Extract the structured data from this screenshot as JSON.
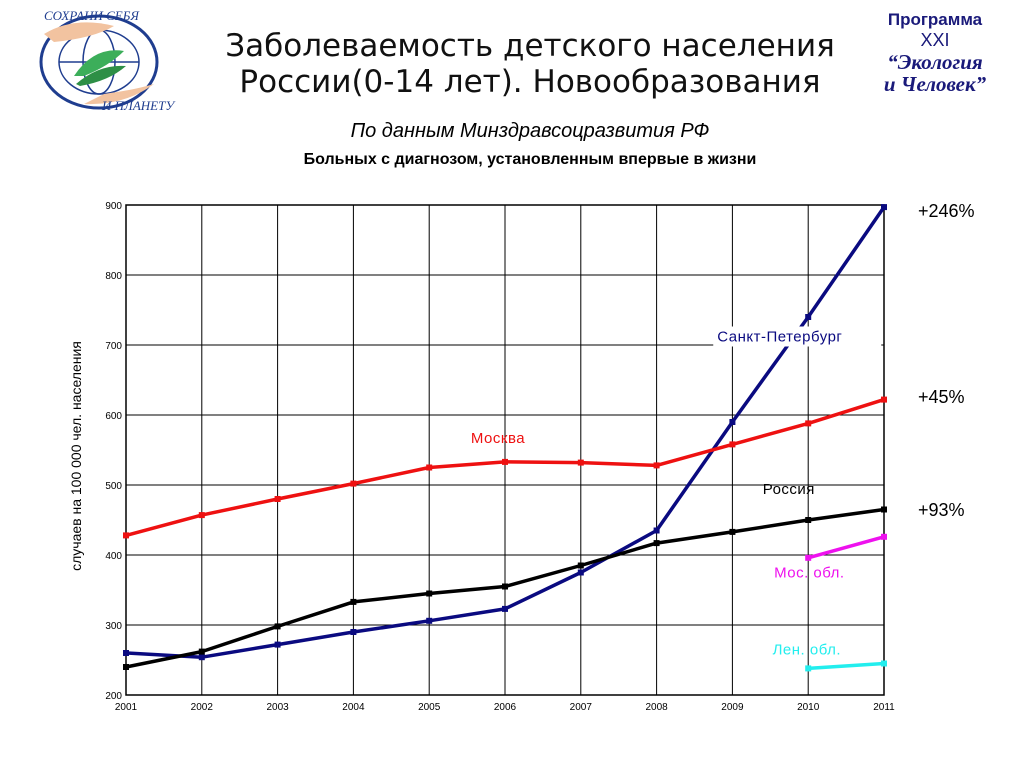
{
  "header": {
    "title_line1": "Заболеваемость детского населения",
    "title_line2": "России(0-14 лет). Новообразования",
    "subtitle": "По данным Минздравсоцразвития РФ",
    "subtitle2": "Больных с диагнозом, установленным впервые в жизни"
  },
  "logo_left": {
    "text_top": "СОХРАНИ СЕБЯ",
    "text_bottom": "И ПЛАНЕТУ"
  },
  "logo_right": {
    "line1": "Программа",
    "line2": "XXI",
    "line3": "“Экология",
    "line4": "и Человек”"
  },
  "percentages": {
    "spb": "+246%",
    "moscow": "+45%",
    "russia": "+93%"
  },
  "chart_data": {
    "type": "line",
    "ylabel": "случаев на 100 000 чел. населения",
    "xlabel": "",
    "x": [
      "2001",
      "2002",
      "2003",
      "2004",
      "2005",
      "2006",
      "2007",
      "2008",
      "2009",
      "2010",
      "2011"
    ],
    "yticks": [
      "200",
      "300",
      "400",
      "500",
      "600",
      "700",
      "800",
      "900"
    ],
    "ylim": [
      200,
      900
    ],
    "grid": true,
    "series": [
      {
        "name": "Санкт-Петербург",
        "color": "#0a0a80",
        "x": [
          "2001",
          "2002",
          "2003",
          "2004",
          "2005",
          "2006",
          "2007",
          "2008",
          "2009",
          "2010",
          "2011"
        ],
        "values": [
          260,
          254,
          272,
          290,
          306,
          323,
          375,
          435,
          590,
          740,
          897
        ]
      },
      {
        "name": "Москва",
        "color": "#ee1111",
        "x": [
          "2001",
          "2002",
          "2003",
          "2004",
          "2005",
          "2006",
          "2007",
          "2008",
          "2009",
          "2010",
          "2011"
        ],
        "values": [
          428,
          457,
          480,
          502,
          525,
          533,
          532,
          528,
          558,
          588,
          622
        ]
      },
      {
        "name": "Россия",
        "color": "#000000",
        "x": [
          "2001",
          "2002",
          "2003",
          "2004",
          "2005",
          "2006",
          "2007",
          "2008",
          "2009",
          "2010",
          "2011"
        ],
        "values": [
          240,
          262,
          298,
          333,
          345,
          355,
          385,
          417,
          433,
          450,
          465
        ]
      },
      {
        "name": "Мос. обл.",
        "color": "#ee11ee",
        "x": [
          "2010",
          "2011"
        ],
        "values": [
          396,
          426
        ]
      },
      {
        "name": "Лен. обл.",
        "color": "#22eeee",
        "x": [
          "2010",
          "2011"
        ],
        "values": [
          238,
          245
        ]
      }
    ]
  }
}
